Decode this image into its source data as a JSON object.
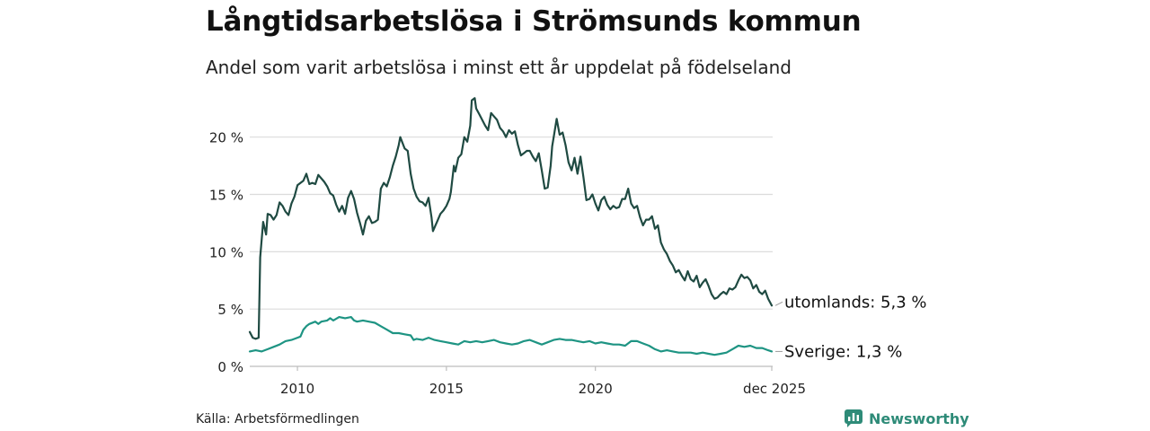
{
  "title": "Långtidsarbetslösa i Strömsunds kommun",
  "subtitle": "Andel som varit arbetslösa i minst ett år uppdelat på födelseland",
  "source": "Källa: Arbetsförmedlingen",
  "brand": {
    "name": "Newsworthy",
    "icon": "newsworthy-logo-icon",
    "color": "#2e8b78"
  },
  "chart_data": {
    "type": "line",
    "title": "Långtidsarbetslösa i Strömsunds kommun",
    "subtitle": "Andel som varit arbetslösa i minst ett år uppdelat på födelseland",
    "xlabel": "",
    "ylabel": "",
    "xlim": [
      2008.4,
      2025.95
    ],
    "ylim": [
      0,
      23.5
    ],
    "grid": true,
    "yticks": [
      {
        "value": 0,
        "label": "0 %"
      },
      {
        "value": 5,
        "label": "5 %"
      },
      {
        "value": 10,
        "label": "10 %"
      },
      {
        "value": 15,
        "label": "15 %"
      },
      {
        "value": 20,
        "label": "20 %"
      }
    ],
    "xticks": [
      {
        "value": 2010,
        "label": "2010"
      },
      {
        "value": 2015,
        "label": "2015"
      },
      {
        "value": 2020,
        "label": "2020"
      },
      {
        "value": 2025.92,
        "label": "dec 2025"
      }
    ],
    "series": [
      {
        "name": "utomlands",
        "end_label": "utomlands: 5,3 %",
        "color": "#1f4a42",
        "points": [
          [
            2008.4,
            3.0
          ],
          [
            2008.5,
            2.5
          ],
          [
            2008.6,
            2.4
          ],
          [
            2008.7,
            2.5
          ],
          [
            2008.75,
            9.5
          ],
          [
            2008.85,
            12.6
          ],
          [
            2008.95,
            11.5
          ],
          [
            2009.0,
            13.3
          ],
          [
            2009.1,
            13.2
          ],
          [
            2009.2,
            12.8
          ],
          [
            2009.3,
            13.2
          ],
          [
            2009.4,
            14.3
          ],
          [
            2009.5,
            14.0
          ],
          [
            2009.6,
            13.5
          ],
          [
            2009.7,
            13.2
          ],
          [
            2009.8,
            14.2
          ],
          [
            2009.9,
            14.8
          ],
          [
            2010.0,
            15.8
          ],
          [
            2010.1,
            16.0
          ],
          [
            2010.2,
            16.2
          ],
          [
            2010.3,
            16.8
          ],
          [
            2010.4,
            15.9
          ],
          [
            2010.5,
            16.0
          ],
          [
            2010.6,
            15.9
          ],
          [
            2010.7,
            16.7
          ],
          [
            2010.8,
            16.4
          ],
          [
            2010.9,
            16.1
          ],
          [
            2011.0,
            15.7
          ],
          [
            2011.1,
            15.1
          ],
          [
            2011.2,
            14.9
          ],
          [
            2011.3,
            14.1
          ],
          [
            2011.4,
            13.5
          ],
          [
            2011.5,
            14.0
          ],
          [
            2011.6,
            13.3
          ],
          [
            2011.7,
            14.7
          ],
          [
            2011.8,
            15.3
          ],
          [
            2011.9,
            14.6
          ],
          [
            2012.0,
            13.4
          ],
          [
            2012.1,
            12.5
          ],
          [
            2012.2,
            11.5
          ],
          [
            2012.3,
            12.7
          ],
          [
            2012.4,
            13.1
          ],
          [
            2012.5,
            12.5
          ],
          [
            2012.6,
            12.6
          ],
          [
            2012.7,
            12.8
          ],
          [
            2012.8,
            15.5
          ],
          [
            2012.9,
            16.0
          ],
          [
            2013.0,
            15.7
          ],
          [
            2013.1,
            16.5
          ],
          [
            2013.2,
            17.5
          ],
          [
            2013.3,
            18.3
          ],
          [
            2013.4,
            19.3
          ],
          [
            2013.45,
            20.0
          ],
          [
            2013.6,
            19.0
          ],
          [
            2013.7,
            18.8
          ],
          [
            2013.8,
            16.8
          ],
          [
            2013.9,
            15.5
          ],
          [
            2014.0,
            14.8
          ],
          [
            2014.1,
            14.4
          ],
          [
            2014.2,
            14.3
          ],
          [
            2014.3,
            14.0
          ],
          [
            2014.4,
            14.7
          ],
          [
            2014.5,
            13.0
          ],
          [
            2014.55,
            11.8
          ],
          [
            2014.7,
            12.7
          ],
          [
            2014.8,
            13.3
          ],
          [
            2014.9,
            13.6
          ],
          [
            2015.0,
            14.0
          ],
          [
            2015.1,
            14.6
          ],
          [
            2015.15,
            15.2
          ],
          [
            2015.25,
            17.5
          ],
          [
            2015.3,
            17.0
          ],
          [
            2015.4,
            18.2
          ],
          [
            2015.5,
            18.5
          ],
          [
            2015.6,
            20.0
          ],
          [
            2015.7,
            19.6
          ],
          [
            2015.8,
            21.0
          ],
          [
            2015.85,
            23.2
          ],
          [
            2015.95,
            23.4
          ],
          [
            2016.0,
            22.5
          ],
          [
            2016.1,
            22.0
          ],
          [
            2016.2,
            21.5
          ],
          [
            2016.3,
            21.0
          ],
          [
            2016.4,
            20.6
          ],
          [
            2016.5,
            22.1
          ],
          [
            2016.6,
            21.8
          ],
          [
            2016.7,
            21.5
          ],
          [
            2016.8,
            20.8
          ],
          [
            2016.9,
            20.5
          ],
          [
            2017.0,
            20.0
          ],
          [
            2017.1,
            20.6
          ],
          [
            2017.2,
            20.3
          ],
          [
            2017.3,
            20.5
          ],
          [
            2017.4,
            19.3
          ],
          [
            2017.5,
            18.4
          ],
          [
            2017.6,
            18.6
          ],
          [
            2017.7,
            18.8
          ],
          [
            2017.8,
            18.8
          ],
          [
            2017.9,
            18.3
          ],
          [
            2018.0,
            17.9
          ],
          [
            2018.1,
            18.6
          ],
          [
            2018.2,
            17.1
          ],
          [
            2018.3,
            15.5
          ],
          [
            2018.4,
            15.6
          ],
          [
            2018.5,
            17.5
          ],
          [
            2018.55,
            19.2
          ],
          [
            2018.6,
            20.0
          ],
          [
            2018.7,
            21.6
          ],
          [
            2018.8,
            20.2
          ],
          [
            2018.9,
            20.4
          ],
          [
            2019.0,
            19.3
          ],
          [
            2019.1,
            17.8
          ],
          [
            2019.2,
            17.1
          ],
          [
            2019.3,
            18.2
          ],
          [
            2019.4,
            16.8
          ],
          [
            2019.5,
            18.3
          ],
          [
            2019.6,
            16.5
          ],
          [
            2019.7,
            14.5
          ],
          [
            2019.8,
            14.6
          ],
          [
            2019.9,
            15.0
          ],
          [
            2020.0,
            14.2
          ],
          [
            2020.1,
            13.6
          ],
          [
            2020.2,
            14.5
          ],
          [
            2020.3,
            14.8
          ],
          [
            2020.4,
            14.1
          ],
          [
            2020.5,
            13.7
          ],
          [
            2020.6,
            14.0
          ],
          [
            2020.7,
            13.8
          ],
          [
            2020.8,
            13.9
          ],
          [
            2020.9,
            14.6
          ],
          [
            2021.0,
            14.6
          ],
          [
            2021.1,
            15.5
          ],
          [
            2021.2,
            14.2
          ],
          [
            2021.3,
            13.8
          ],
          [
            2021.4,
            14.0
          ],
          [
            2021.5,
            13.0
          ],
          [
            2021.6,
            12.3
          ],
          [
            2021.7,
            12.8
          ],
          [
            2021.8,
            12.8
          ],
          [
            2021.9,
            13.1
          ],
          [
            2022.0,
            12.0
          ],
          [
            2022.1,
            12.3
          ],
          [
            2022.2,
            10.8
          ],
          [
            2022.3,
            10.2
          ],
          [
            2022.4,
            9.8
          ],
          [
            2022.5,
            9.2
          ],
          [
            2022.6,
            8.8
          ],
          [
            2022.7,
            8.2
          ],
          [
            2022.8,
            8.4
          ],
          [
            2022.9,
            7.9
          ],
          [
            2023.0,
            7.5
          ],
          [
            2023.1,
            8.3
          ],
          [
            2023.2,
            7.6
          ],
          [
            2023.3,
            7.4
          ],
          [
            2023.4,
            7.9
          ],
          [
            2023.5,
            6.9
          ],
          [
            2023.6,
            7.3
          ],
          [
            2023.7,
            7.6
          ],
          [
            2023.8,
            7.0
          ],
          [
            2023.9,
            6.3
          ],
          [
            2024.0,
            5.9
          ],
          [
            2024.1,
            6.0
          ],
          [
            2024.2,
            6.3
          ],
          [
            2024.3,
            6.5
          ],
          [
            2024.4,
            6.3
          ],
          [
            2024.5,
            6.8
          ],
          [
            2024.6,
            6.7
          ],
          [
            2024.7,
            6.9
          ],
          [
            2024.8,
            7.5
          ],
          [
            2024.9,
            8.0
          ],
          [
            2025.0,
            7.7
          ],
          [
            2025.1,
            7.8
          ],
          [
            2025.2,
            7.5
          ],
          [
            2025.3,
            6.8
          ],
          [
            2025.4,
            7.1
          ],
          [
            2025.5,
            6.5
          ],
          [
            2025.6,
            6.3
          ],
          [
            2025.7,
            6.6
          ],
          [
            2025.8,
            5.9
          ],
          [
            2025.92,
            5.3
          ]
        ]
      },
      {
        "name": "Sverige",
        "end_label": "Sverige: 1,3 %",
        "color": "#1e9483",
        "points": [
          [
            2008.4,
            1.3
          ],
          [
            2008.6,
            1.4
          ],
          [
            2008.8,
            1.3
          ],
          [
            2009.0,
            1.5
          ],
          [
            2009.2,
            1.7
          ],
          [
            2009.4,
            1.9
          ],
          [
            2009.6,
            2.2
          ],
          [
            2009.8,
            2.3
          ],
          [
            2010.0,
            2.5
          ],
          [
            2010.1,
            2.6
          ],
          [
            2010.2,
            3.2
          ],
          [
            2010.3,
            3.5
          ],
          [
            2010.4,
            3.7
          ],
          [
            2010.6,
            3.9
          ],
          [
            2010.7,
            3.7
          ],
          [
            2010.8,
            3.9
          ],
          [
            2011.0,
            4.0
          ],
          [
            2011.1,
            4.2
          ],
          [
            2011.2,
            4.0
          ],
          [
            2011.4,
            4.3
          ],
          [
            2011.6,
            4.2
          ],
          [
            2011.8,
            4.3
          ],
          [
            2011.9,
            4.0
          ],
          [
            2012.0,
            3.9
          ],
          [
            2012.2,
            4.0
          ],
          [
            2012.4,
            3.9
          ],
          [
            2012.6,
            3.8
          ],
          [
            2012.8,
            3.5
          ],
          [
            2013.0,
            3.2
          ],
          [
            2013.2,
            2.9
          ],
          [
            2013.4,
            2.9
          ],
          [
            2013.6,
            2.8
          ],
          [
            2013.8,
            2.7
          ],
          [
            2013.9,
            2.3
          ],
          [
            2014.0,
            2.4
          ],
          [
            2014.2,
            2.3
          ],
          [
            2014.4,
            2.5
          ],
          [
            2014.6,
            2.3
          ],
          [
            2014.8,
            2.2
          ],
          [
            2015.0,
            2.1
          ],
          [
            2015.2,
            2.0
          ],
          [
            2015.4,
            1.9
          ],
          [
            2015.6,
            2.2
          ],
          [
            2015.8,
            2.1
          ],
          [
            2016.0,
            2.2
          ],
          [
            2016.2,
            2.1
          ],
          [
            2016.4,
            2.2
          ],
          [
            2016.6,
            2.3
          ],
          [
            2016.8,
            2.1
          ],
          [
            2017.0,
            2.0
          ],
          [
            2017.2,
            1.9
          ],
          [
            2017.4,
            2.0
          ],
          [
            2017.6,
            2.2
          ],
          [
            2017.8,
            2.3
          ],
          [
            2018.0,
            2.1
          ],
          [
            2018.2,
            1.9
          ],
          [
            2018.4,
            2.1
          ],
          [
            2018.6,
            2.3
          ],
          [
            2018.8,
            2.4
          ],
          [
            2019.0,
            2.3
          ],
          [
            2019.2,
            2.3
          ],
          [
            2019.4,
            2.2
          ],
          [
            2019.6,
            2.1
          ],
          [
            2019.8,
            2.2
          ],
          [
            2020.0,
            2.0
          ],
          [
            2020.2,
            2.1
          ],
          [
            2020.4,
            2.0
          ],
          [
            2020.6,
            1.9
          ],
          [
            2020.8,
            1.9
          ],
          [
            2021.0,
            1.8
          ],
          [
            2021.2,
            2.2
          ],
          [
            2021.4,
            2.2
          ],
          [
            2021.6,
            2.0
          ],
          [
            2021.8,
            1.8
          ],
          [
            2022.0,
            1.5
          ],
          [
            2022.2,
            1.3
          ],
          [
            2022.4,
            1.4
          ],
          [
            2022.6,
            1.3
          ],
          [
            2022.8,
            1.2
          ],
          [
            2023.0,
            1.2
          ],
          [
            2023.2,
            1.2
          ],
          [
            2023.4,
            1.1
          ],
          [
            2023.6,
            1.2
          ],
          [
            2023.8,
            1.1
          ],
          [
            2024.0,
            1.0
          ],
          [
            2024.2,
            1.1
          ],
          [
            2024.4,
            1.2
          ],
          [
            2024.6,
            1.5
          ],
          [
            2024.8,
            1.8
          ],
          [
            2025.0,
            1.7
          ],
          [
            2025.2,
            1.8
          ],
          [
            2025.4,
            1.6
          ],
          [
            2025.6,
            1.6
          ],
          [
            2025.8,
            1.4
          ],
          [
            2025.92,
            1.3
          ]
        ]
      }
    ]
  }
}
